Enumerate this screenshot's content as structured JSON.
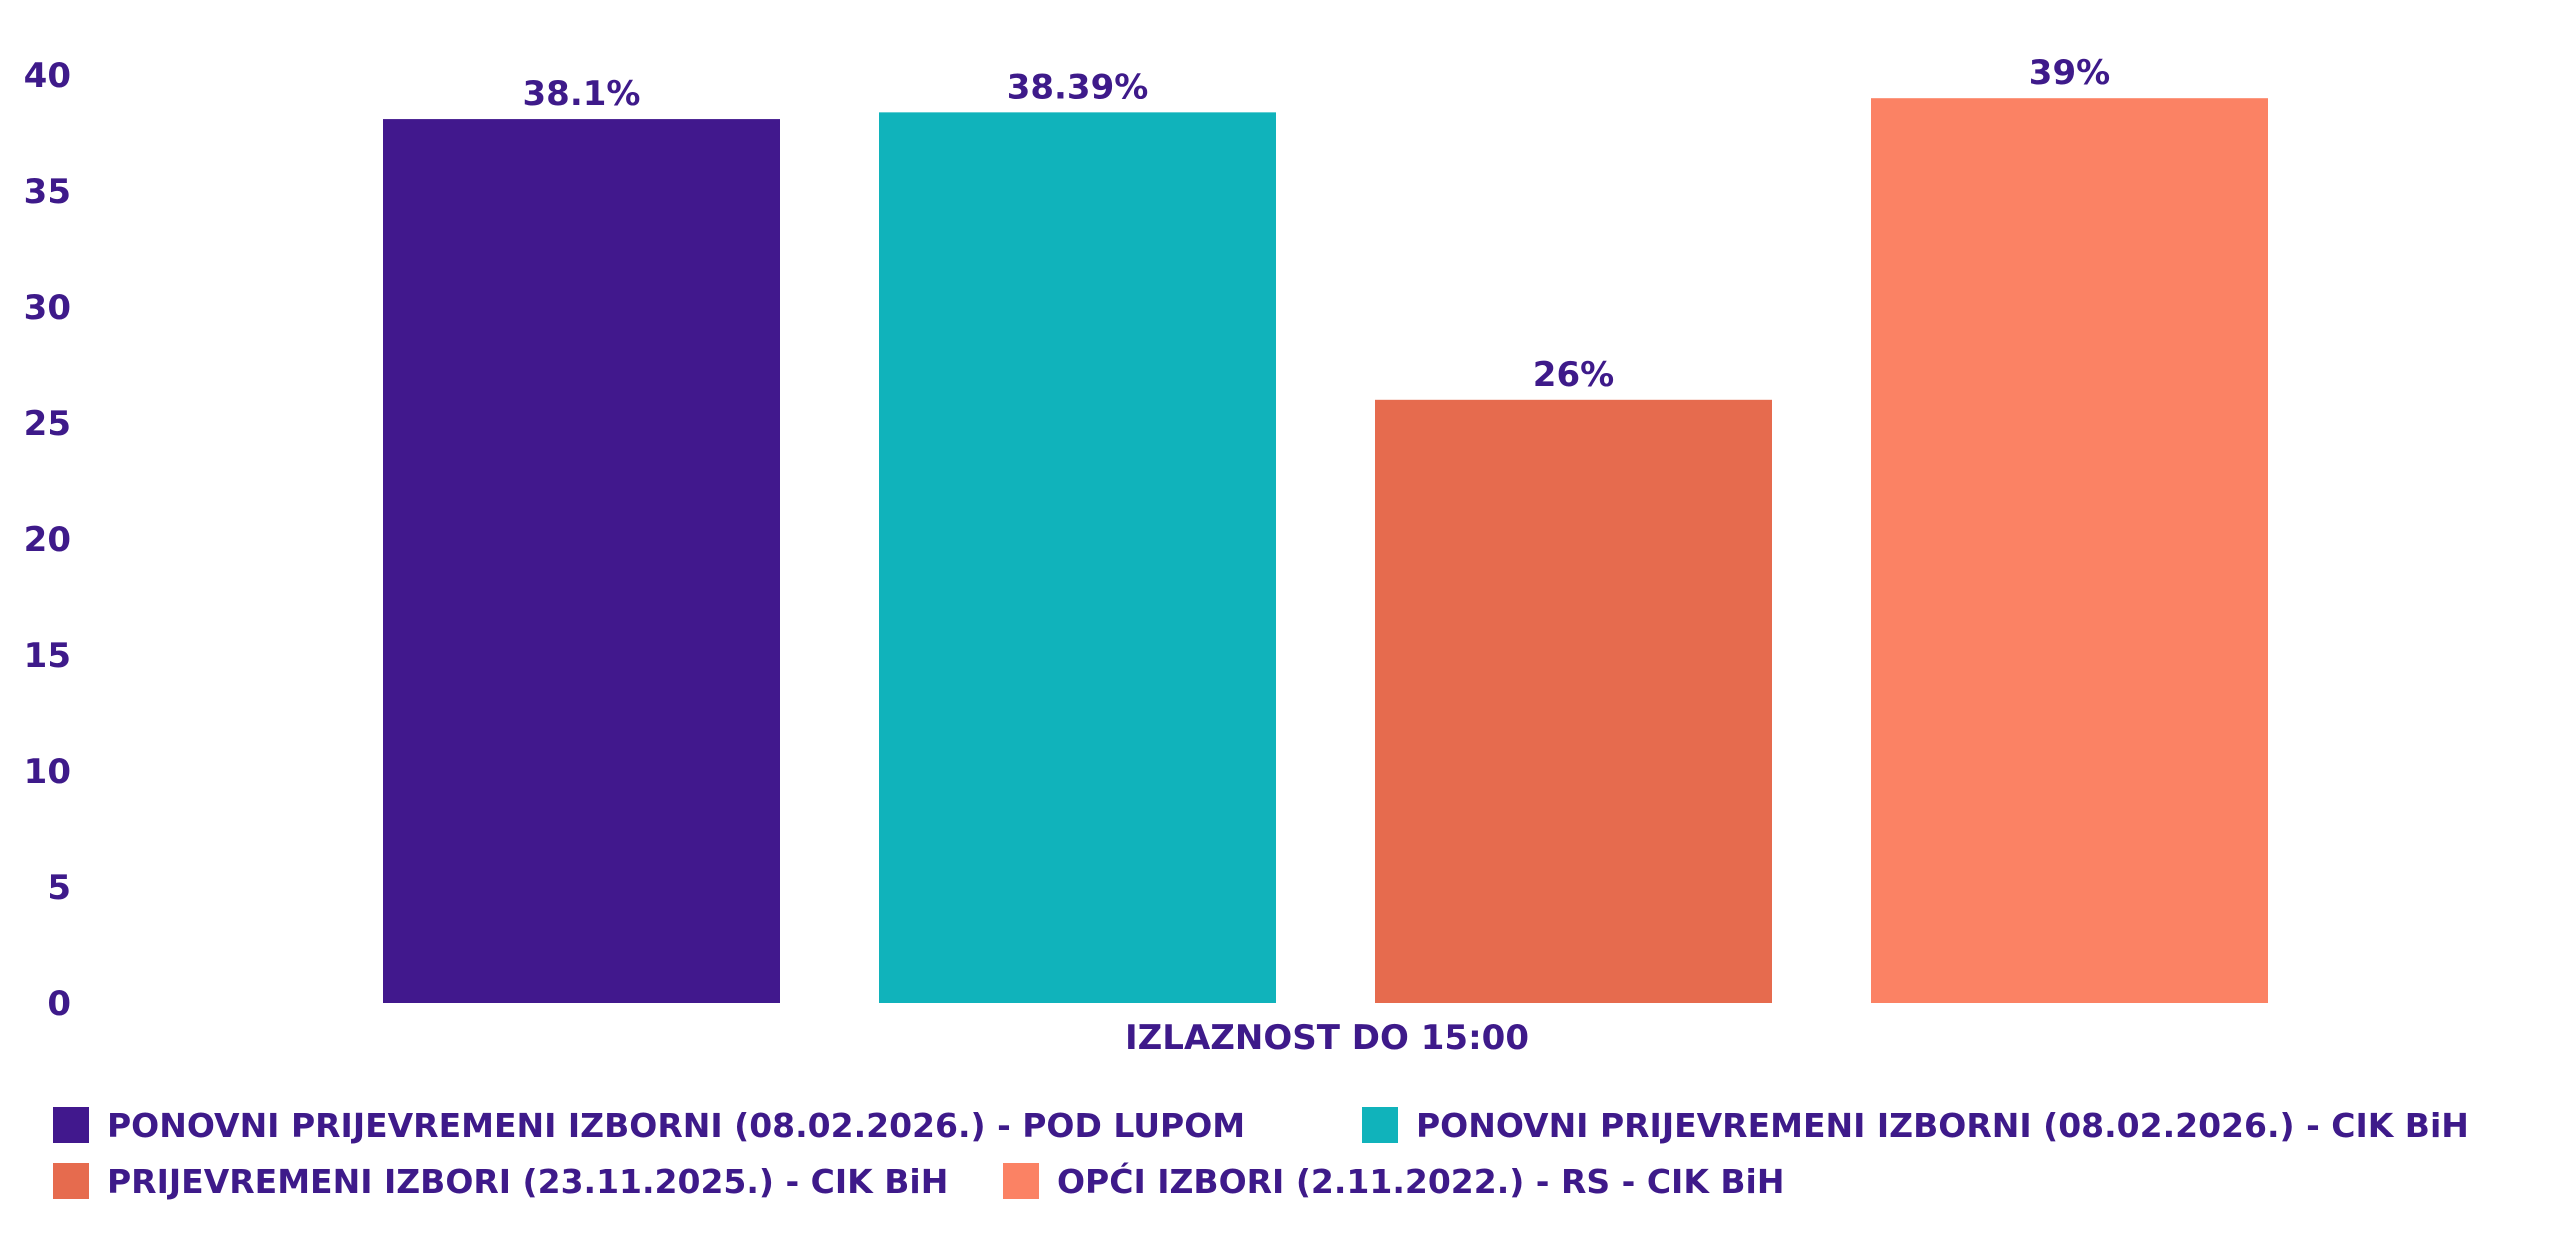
{
  "chart_data": {
    "type": "bar",
    "categories": [
      "IZLAZNOST DO 15:00"
    ],
    "series": [
      {
        "name": "PONOVNI PRIJEVREMENI IZBORNI (08.02.2026.) - POD LUPOM",
        "values": [
          38.1
        ],
        "label": "38.1%",
        "color": "#41188d"
      },
      {
        "name": "PONOVNI PRIJEVREMENI IZBORNI (08.02.2026.) - CIK BiH",
        "values": [
          38.39
        ],
        "label": "38.39%",
        "color": "#10b3bb"
      },
      {
        "name": "PRIJEVREMENI IZBORI (23.11.2025.) - CIK BiH",
        "values": [
          26
        ],
        "label": "26%",
        "color": "#e66b4e"
      },
      {
        "name": "OPĆI IZBORI (2.11.2022.) - RS - CIK BiH",
        "values": [
          39
        ],
        "label": "39%",
        "color": "#fb8264"
      }
    ],
    "title": "",
    "xlabel": "",
    "ylabel": "",
    "ylim": [
      0,
      40
    ],
    "yticks": [
      "0",
      "5",
      "10",
      "15",
      "20",
      "25",
      "30",
      "35",
      "40"
    ],
    "grid": false,
    "legend_position": "bottom-left",
    "text_color": "#3e1a8a"
  }
}
